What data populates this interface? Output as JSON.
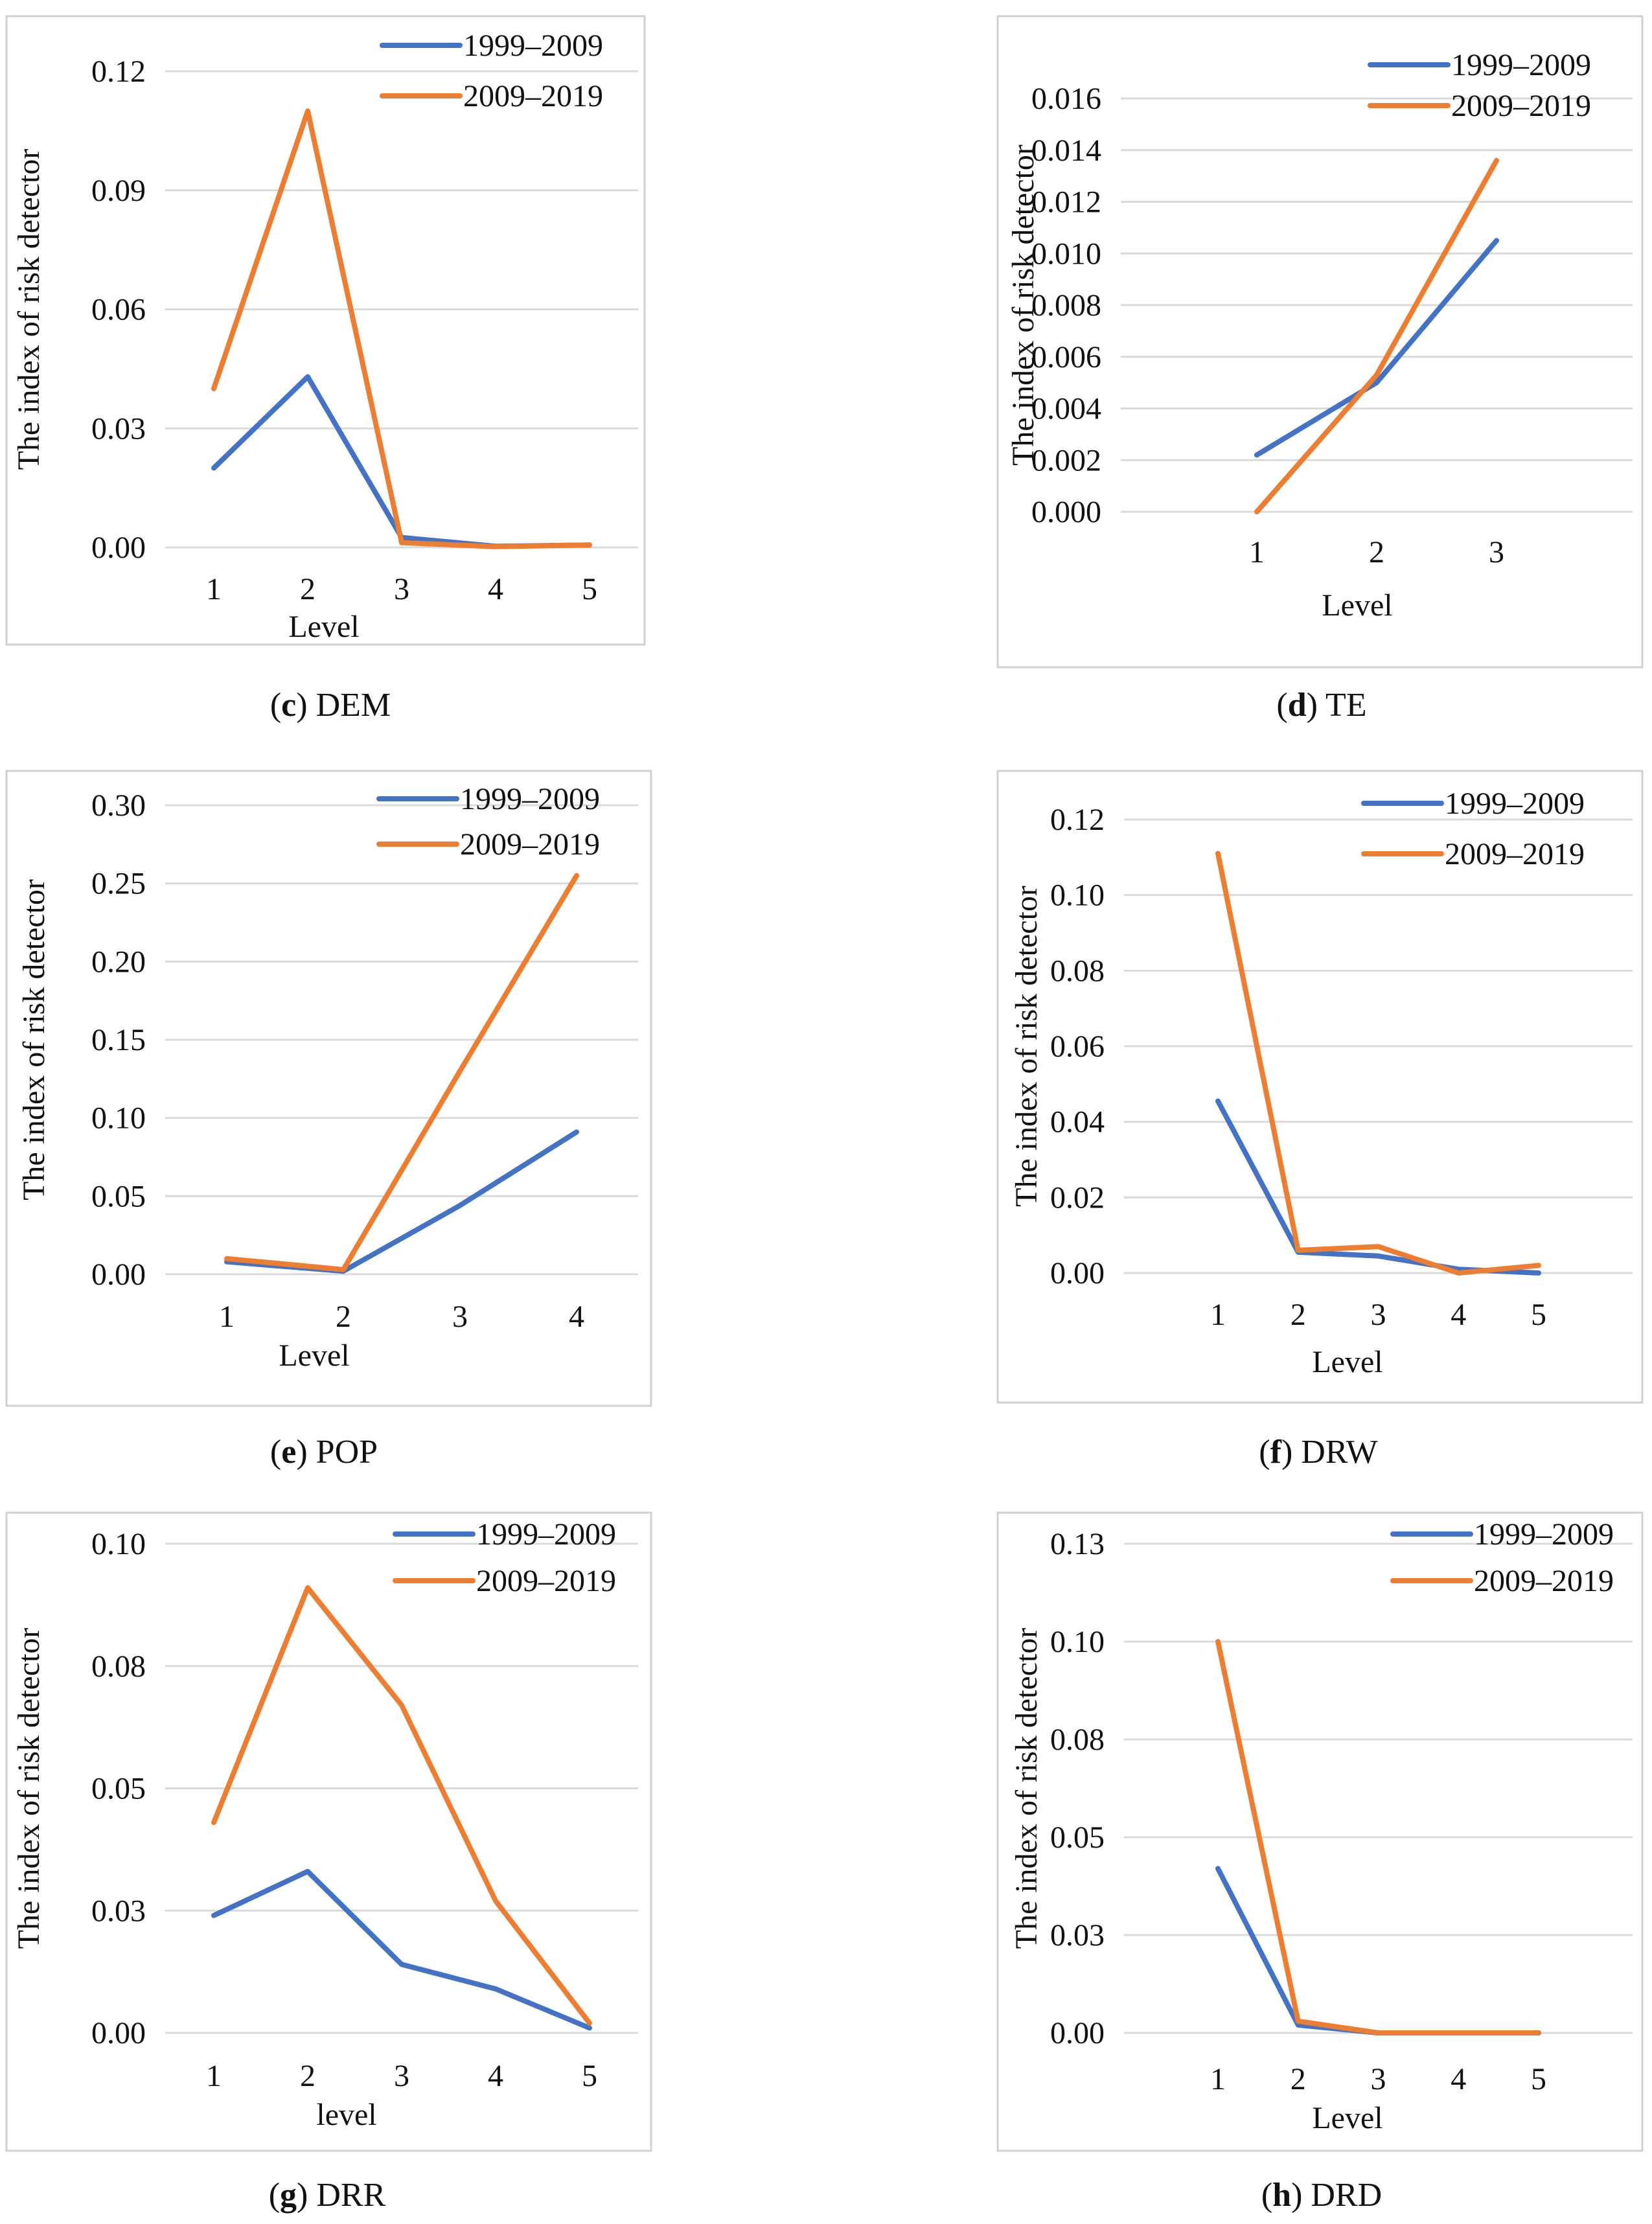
{
  "colors": {
    "series_1999_2009": "#4472C4",
    "series_2009_2019": "#ED7D31",
    "grid": "#D9D9D9"
  },
  "chart_data": [
    {
      "id": "c",
      "type": "line",
      "caption": {
        "letter": "c",
        "name": "DEM"
      },
      "xlabel": "Level",
      "ylabel": "The index of risk detector",
      "categories": [
        "1",
        "2",
        "3",
        "4",
        "5"
      ],
      "yticks": [
        0.0,
        0.03,
        0.06,
        0.09,
        0.12
      ],
      "ytick_labels": [
        "0.00",
        "0.03",
        "0.06",
        "0.09",
        "0.12"
      ],
      "ylim": [
        0,
        0.12
      ],
      "grid": true,
      "legend": "top-right",
      "series": [
        {
          "name": "1999–2009",
          "values": [
            0.02,
            0.043,
            0.0025,
            0.0003,
            0.0006
          ]
        },
        {
          "name": "2009–2019",
          "values": [
            0.04,
            0.11,
            0.0012,
            0.0002,
            0.0006
          ]
        }
      ]
    },
    {
      "id": "d",
      "type": "line",
      "caption": {
        "letter": "d",
        "name": "TE"
      },
      "xlabel": "Level",
      "ylabel": "The index of risk detector",
      "categories": [
        "1",
        "2",
        "3"
      ],
      "yticks": [
        0.0,
        0.002,
        0.004,
        0.006,
        0.008,
        0.01,
        0.012,
        0.014,
        0.016
      ],
      "ytick_labels": [
        "0.000",
        "0.002",
        "0.004",
        "0.006",
        "0.008",
        "0.010",
        "0.012",
        "0.014",
        "0.016"
      ],
      "ylim": [
        0,
        0.016
      ],
      "grid": true,
      "legend": "top-right",
      "series": [
        {
          "name": "1999–2009",
          "values": [
            0.0022,
            0.005,
            0.0105
          ]
        },
        {
          "name": "2009–2019",
          "values": [
            0.0,
            0.0053,
            0.0136
          ]
        }
      ]
    },
    {
      "id": "e",
      "type": "line",
      "caption": {
        "letter": "e",
        "name": "POP"
      },
      "xlabel": "Level",
      "ylabel": "The index of risk detector",
      "categories": [
        "1",
        "2",
        "3",
        "4"
      ],
      "yticks": [
        0.0,
        0.05,
        0.1,
        0.15,
        0.2,
        0.25,
        0.3
      ],
      "ytick_labels": [
        "0.00",
        "0.05",
        "0.10",
        "0.15",
        "0.20",
        "0.25",
        "0.30"
      ],
      "ylim": [
        0,
        0.3
      ],
      "grid": true,
      "legend": "top-right",
      "series": [
        {
          "name": "1999–2009",
          "values": [
            0.008,
            0.002,
            0.044,
            0.091
          ]
        },
        {
          "name": "2009–2019",
          "values": [
            0.01,
            0.003,
            0.13,
            0.255
          ]
        }
      ]
    },
    {
      "id": "f",
      "type": "line",
      "caption": {
        "letter": "f",
        "name": "DRW"
      },
      "xlabel": "Level",
      "ylabel": "The index of risk detector",
      "categories": [
        "1",
        "2",
        "3",
        "4",
        "5"
      ],
      "yticks": [
        0.0,
        0.02,
        0.04,
        0.06,
        0.08,
        0.1,
        0.12
      ],
      "ytick_labels": [
        "0.00",
        "0.02",
        "0.04",
        "0.06",
        "0.08",
        "0.10",
        "0.12"
      ],
      "ylim": [
        0,
        0.12
      ],
      "grid": true,
      "legend": "top-right",
      "series": [
        {
          "name": "1999–2009",
          "values": [
            0.0455,
            0.0055,
            0.0045,
            0.001,
            0.0
          ]
        },
        {
          "name": "2009–2019",
          "values": [
            0.111,
            0.006,
            0.007,
            0.0,
            0.002
          ]
        }
      ]
    },
    {
      "id": "g",
      "type": "line",
      "caption": {
        "letter": "g",
        "name": "DRR"
      },
      "xlabel": "level",
      "ylabel": "The index of risk detector",
      "categories": [
        "1",
        "2",
        "3",
        "4",
        "5"
      ],
      "yticks": [
        0.0,
        0.025,
        0.05,
        0.075,
        0.1
      ],
      "ytick_labels": [
        "0.00",
        "0.03",
        "0.05",
        "0.08",
        "0.10"
      ],
      "ylim": [
        0,
        0.1
      ],
      "grid": true,
      "legend": "top-right",
      "series": [
        {
          "name": "1999–2009",
          "values": [
            0.024,
            0.033,
            0.014,
            0.009,
            0.001
          ]
        },
        {
          "name": "2009–2019",
          "values": [
            0.043,
            0.091,
            0.067,
            0.027,
            0.002
          ]
        }
      ]
    },
    {
      "id": "h",
      "type": "line",
      "caption": {
        "letter": "h",
        "name": "DRD"
      },
      "xlabel": "Level",
      "ylabel": "The index of risk detector",
      "categories": [
        "1",
        "2",
        "3",
        "4",
        "5"
      ],
      "yticks": [
        0.0,
        0.025,
        0.05,
        0.075,
        0.1,
        0.125
      ],
      "ytick_labels": [
        "0.00",
        "0.03",
        "0.05",
        "0.08",
        "0.10",
        "0.13"
      ],
      "ylim": [
        0,
        0.125
      ],
      "grid": true,
      "legend": "top-right",
      "series": [
        {
          "name": "1999–2009",
          "values": [
            0.042,
            0.002,
            0.0,
            0.0,
            0.0
          ]
        },
        {
          "name": "2009–2019",
          "values": [
            0.1,
            0.003,
            0.0,
            0.0,
            0.0
          ]
        }
      ]
    }
  ]
}
